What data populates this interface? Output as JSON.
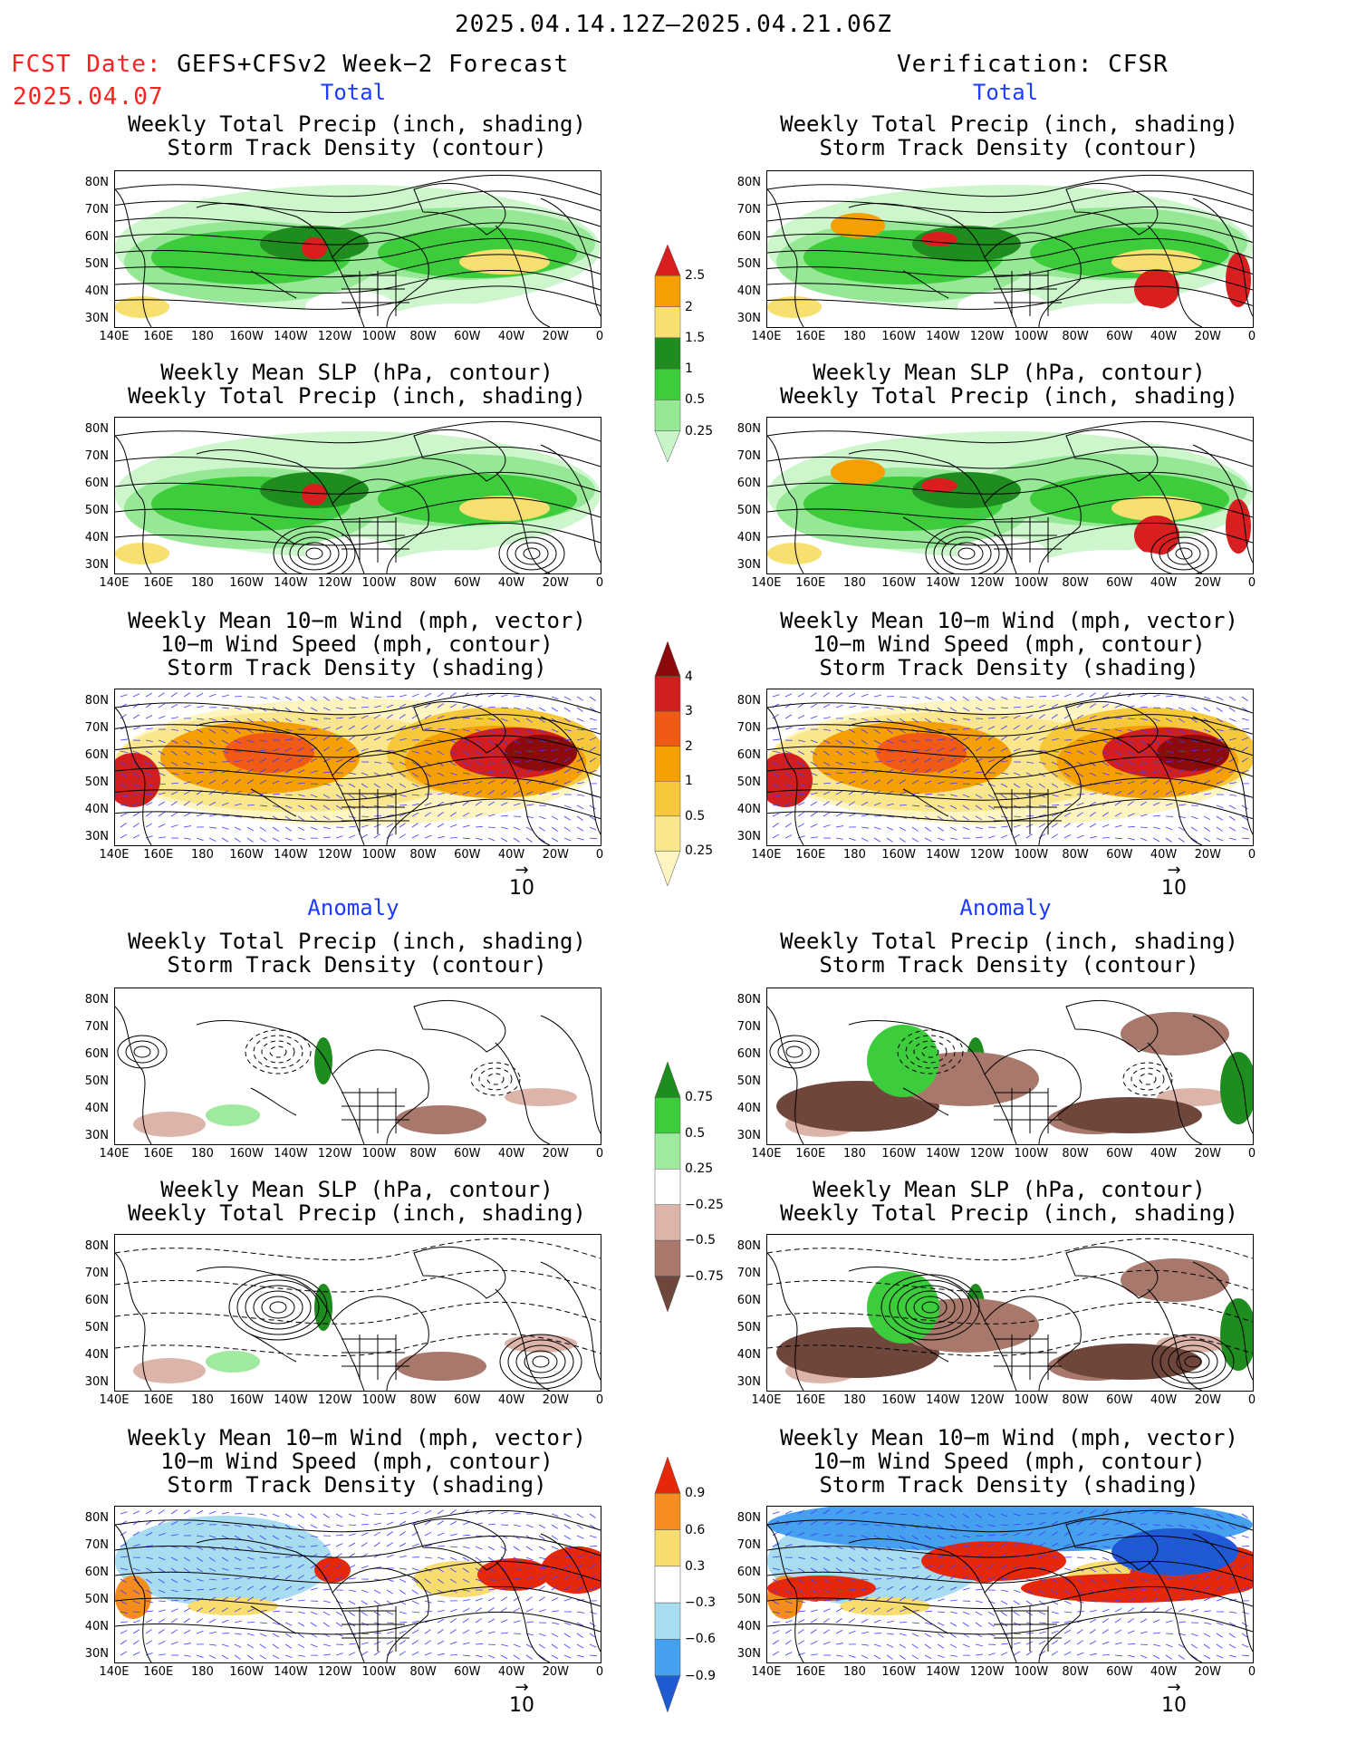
{
  "header": {
    "period": "2025.04.14.12Z–2025.04.21.06Z",
    "fcst_prefix": "FCST Date:",
    "fcst_source": "GEFS+CFSv2 Week−2 Forecast",
    "fcst_date": "2025.04.07",
    "verif_label": "Verification: CFSR"
  },
  "sections": {
    "total": "Total",
    "anomaly": "Anomaly"
  },
  "titles": {
    "precip_storm": "Weekly Total Precip (inch, shading)\nStorm Track Density (contour)",
    "slp_precip": "Weekly Mean SLP (hPa, contour)\nWeekly Total Precip (inch, shading)",
    "wind_storm": "Weekly Mean 10−m Wind (mph, vector)\n10−m Wind Speed (mph, contour)\nStorm Track Density (shading)"
  },
  "axes": {
    "lat_labels": [
      "80N",
      "70N",
      "60N",
      "50N",
      "40N",
      "30N"
    ],
    "lon_labels": [
      "140E",
      "160E",
      "180",
      "160W",
      "140W",
      "120W",
      "100W",
      "80W",
      "60W",
      "40W",
      "20W",
      "0"
    ]
  },
  "vector_reference": "10",
  "colorbars": {
    "precip_total": {
      "labels": [
        "2.5",
        "2",
        "1.5",
        "1",
        "0.5",
        "0.25"
      ],
      "colors": [
        "#d81e1e",
        "#f5a000",
        "#f8e070",
        "#1e8c1e",
        "#3ccc3c",
        "#96e896",
        "#c8f5c8"
      ]
    },
    "storm_total": {
      "labels": [
        "4",
        "3",
        "2",
        "1",
        "0.5",
        "0.25"
      ],
      "colors": [
        "#8c0a0a",
        "#d21e1e",
        "#f05a14",
        "#f5a000",
        "#f8c83c",
        "#fae68c",
        "#fff5c0"
      ]
    },
    "precip_anom": {
      "labels": [
        "0.75",
        "0.5",
        "0.25",
        "−0.25",
        "−0.5",
        "−0.75"
      ],
      "colors": [
        "#1e8c1e",
        "#3ccc3c",
        "#a0eaa0",
        "#ffffff",
        "#dcb4aa",
        "#a8786c",
        "#6e463c"
      ]
    },
    "storm_anom": {
      "labels": [
        "0.9",
        "0.6",
        "0.3",
        "−0.3",
        "−0.6",
        "−0.9"
      ],
      "colors": [
        "#e6280a",
        "#f58c1e",
        "#f8dc6e",
        "#ffffff",
        "#a8dcf0",
        "#46a0f0",
        "#1e5ad2"
      ]
    }
  },
  "palette": {
    "land_line": "#000000",
    "wind_vector": "#3c3cff"
  }
}
